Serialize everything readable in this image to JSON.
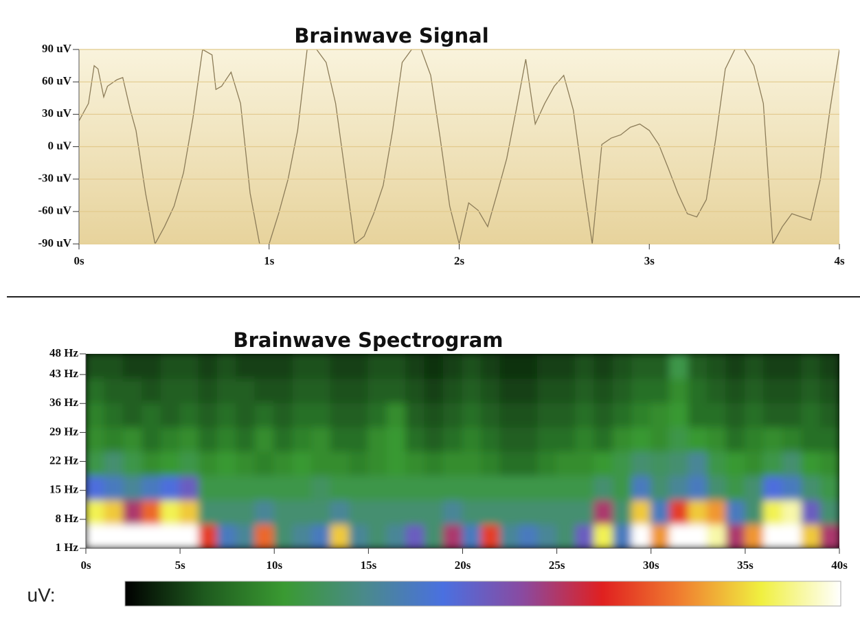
{
  "chart_data": [
    {
      "type": "line",
      "title": "Brainwave Signal",
      "color": "#8c7c58",
      "x": [
        0,
        0.05,
        0.08,
        0.1,
        0.13,
        0.15,
        0.2,
        0.23,
        0.27,
        0.3,
        0.35,
        0.4,
        0.45,
        0.5,
        0.55,
        0.6,
        0.65,
        0.7,
        0.72,
        0.75,
        0.8,
        0.85,
        0.9,
        0.95,
        1.0,
        1.05,
        1.1,
        1.15,
        1.2,
        1.25,
        1.3,
        1.35,
        1.4,
        1.45,
        1.5,
        1.55,
        1.6,
        1.65,
        1.7,
        1.75,
        1.8,
        1.85,
        1.9,
        1.95,
        2.0,
        2.05,
        2.1,
        2.15,
        2.2,
        2.25,
        2.3,
        2.35,
        2.4,
        2.45,
        2.5,
        2.55,
        2.6,
        2.65,
        2.7,
        2.75,
        2.8,
        2.85,
        2.9,
        2.95,
        3.0,
        3.05,
        3.1,
        3.15,
        3.2,
        3.25,
        3.3,
        3.35,
        3.4,
        3.45,
        3.5,
        3.55,
        3.6,
        3.65,
        3.7,
        3.75,
        3.8,
        3.85,
        3.9,
        3.95,
        4.0
      ],
      "values": [
        24,
        40,
        75,
        72,
        46,
        56,
        62,
        64,
        34,
        15,
        -43,
        -90,
        -74,
        -55,
        -24,
        27,
        90,
        85,
        53,
        56,
        69,
        40,
        -43,
        -90,
        -90,
        -62,
        -30,
        15,
        90,
        90,
        78,
        40,
        -24,
        -90,
        -83,
        -62,
        -36,
        15,
        78,
        90,
        90,
        66,
        8,
        -55,
        -90,
        -52,
        -59,
        -74,
        -43,
        -11,
        34,
        81,
        21,
        40,
        56,
        66,
        34,
        -30,
        -90,
        2,
        8,
        11,
        18,
        21,
        15,
        2,
        -20,
        -43,
        -62,
        -65,
        -49,
        8,
        72,
        90,
        90,
        75,
        40,
        -90,
        -74,
        -62,
        -65,
        -68,
        -30,
        34,
        90
      ],
      "xlim": [
        0,
        4
      ],
      "ylim": [
        -90,
        90
      ],
      "xticks": [
        {
          "value": 0,
          "label": "0s"
        },
        {
          "value": 1,
          "label": "1s"
        },
        {
          "value": 2,
          "label": "2s"
        },
        {
          "value": 3,
          "label": "3s"
        },
        {
          "value": 4,
          "label": "4s"
        }
      ],
      "yticks": [
        {
          "value": 90,
          "label": "90 uV"
        },
        {
          "value": 60,
          "label": "60 uV"
        },
        {
          "value": 30,
          "label": "30 uV"
        },
        {
          "value": 0,
          "label": "0 uV"
        },
        {
          "value": -30,
          "label": "-30 uV"
        },
        {
          "value": -60,
          "label": "-60 uV"
        },
        {
          "value": -90,
          "label": "-90 uV"
        }
      ],
      "grid": true
    },
    {
      "type": "heatmap",
      "title": "Brainwave Spectrogram",
      "colorbar_label": "uV:",
      "colorscale": [
        "#000000",
        "#1e5a1e",
        "#3a9a32",
        "#4a8a8a",
        "#4a70e0",
        "#8a4aa0",
        "#e02020",
        "#f08030",
        "#f0f040",
        "#ffffff"
      ],
      "xlim": [
        0,
        40
      ],
      "ylim": [
        1,
        48
      ],
      "xticks": [
        {
          "value": 0,
          "label": "0s"
        },
        {
          "value": 5,
          "label": "5s"
        },
        {
          "value": 10,
          "label": "10s"
        },
        {
          "value": 15,
          "label": "15s"
        },
        {
          "value": 20,
          "label": "20s"
        },
        {
          "value": 25,
          "label": "25s"
        },
        {
          "value": 30,
          "label": "30s"
        },
        {
          "value": 35,
          "label": "35s"
        },
        {
          "value": 40,
          "label": "40s"
        }
      ],
      "yticks": [
        {
          "value": 48,
          "label": "48 Hz"
        },
        {
          "value": 43,
          "label": "43 Hz"
        },
        {
          "value": 36,
          "label": "36 Hz"
        },
        {
          "value": 29,
          "label": "29 Hz"
        },
        {
          "value": 22,
          "label": "22 Hz"
        },
        {
          "value": 15,
          "label": "15 Hz"
        },
        {
          "value": 8,
          "label": "8 Hz"
        },
        {
          "value": 1,
          "label": "1 Hz"
        }
      ],
      "z": [
        [
          1,
          1,
          1,
          1,
          1,
          1,
          0.7,
          0.4,
          0.35,
          0.75,
          0.3,
          0.35,
          0.4,
          0.85,
          0.35,
          0.3,
          0.35,
          0.5,
          0.3,
          0.6,
          0.4,
          0.7,
          0.35,
          0.4,
          0.35,
          0.3,
          0.5,
          0.9,
          0.4,
          1,
          0.8,
          1,
          1,
          0.95,
          0.6,
          0.8,
          1,
          1,
          0.85,
          0.6
        ],
        [
          0.9,
          0.85,
          0.6,
          0.75,
          0.9,
          0.85,
          0.3,
          0.3,
          0.3,
          0.35,
          0.3,
          0.3,
          0.3,
          0.35,
          0.3,
          0.3,
          0.3,
          0.3,
          0.3,
          0.35,
          0.3,
          0.3,
          0.3,
          0.3,
          0.3,
          0.3,
          0.3,
          0.6,
          0.3,
          0.85,
          0.4,
          0.7,
          0.85,
          0.8,
          0.4,
          0.3,
          0.9,
          0.95,
          0.5,
          0.3
        ],
        [
          0.45,
          0.4,
          0.35,
          0.4,
          0.45,
          0.5,
          0.25,
          0.25,
          0.25,
          0.25,
          0.25,
          0.25,
          0.28,
          0.25,
          0.25,
          0.25,
          0.25,
          0.25,
          0.25,
          0.25,
          0.25,
          0.25,
          0.25,
          0.25,
          0.25,
          0.25,
          0.25,
          0.3,
          0.25,
          0.4,
          0.3,
          0.35,
          0.4,
          0.3,
          0.25,
          0.3,
          0.45,
          0.4,
          0.3,
          0.25
        ],
        [
          0.25,
          0.3,
          0.25,
          0.2,
          0.22,
          0.25,
          0.2,
          0.22,
          0.2,
          0.18,
          0.2,
          0.22,
          0.2,
          0.2,
          0.18,
          0.2,
          0.22,
          0.2,
          0.18,
          0.2,
          0.2,
          0.18,
          0.15,
          0.15,
          0.18,
          0.2,
          0.2,
          0.22,
          0.25,
          0.3,
          0.28,
          0.3,
          0.35,
          0.25,
          0.22,
          0.2,
          0.25,
          0.3,
          0.22,
          0.2
        ],
        [
          0.2,
          0.18,
          0.2,
          0.15,
          0.18,
          0.2,
          0.15,
          0.18,
          0.15,
          0.2,
          0.15,
          0.18,
          0.2,
          0.15,
          0.15,
          0.2,
          0.22,
          0.15,
          0.12,
          0.15,
          0.18,
          0.15,
          0.12,
          0.12,
          0.15,
          0.15,
          0.18,
          0.15,
          0.2,
          0.22,
          0.2,
          0.25,
          0.22,
          0.2,
          0.15,
          0.18,
          0.2,
          0.18,
          0.15,
          0.15
        ],
        [
          0.18,
          0.15,
          0.12,
          0.15,
          0.12,
          0.15,
          0.12,
          0.15,
          0.12,
          0.15,
          0.12,
          0.15,
          0.15,
          0.12,
          0.12,
          0.15,
          0.2,
          0.12,
          0.1,
          0.12,
          0.15,
          0.12,
          0.1,
          0.1,
          0.12,
          0.12,
          0.15,
          0.12,
          0.15,
          0.18,
          0.2,
          0.22,
          0.15,
          0.15,
          0.12,
          0.15,
          0.12,
          0.12,
          0.15,
          0.12
        ],
        [
          0.15,
          0.12,
          0.12,
          0.1,
          0.12,
          0.12,
          0.1,
          0.12,
          0.12,
          0.1,
          0.1,
          0.12,
          0.12,
          0.1,
          0.1,
          0.12,
          0.12,
          0.1,
          0.08,
          0.1,
          0.12,
          0.1,
          0.08,
          0.08,
          0.1,
          0.1,
          0.12,
          0.1,
          0.12,
          0.15,
          0.15,
          0.2,
          0.15,
          0.12,
          0.1,
          0.12,
          0.1,
          0.1,
          0.12,
          0.1
        ],
        [
          0.1,
          0.1,
          0.08,
          0.08,
          0.1,
          0.1,
          0.08,
          0.1,
          0.08,
          0.08,
          0.08,
          0.1,
          0.1,
          0.08,
          0.08,
          0.1,
          0.1,
          0.08,
          0.06,
          0.08,
          0.1,
          0.08,
          0.06,
          0.06,
          0.08,
          0.08,
          0.1,
          0.08,
          0.1,
          0.12,
          0.12,
          0.25,
          0.12,
          0.1,
          0.08,
          0.1,
          0.08,
          0.08,
          0.1,
          0.08
        ]
      ]
    }
  ]
}
